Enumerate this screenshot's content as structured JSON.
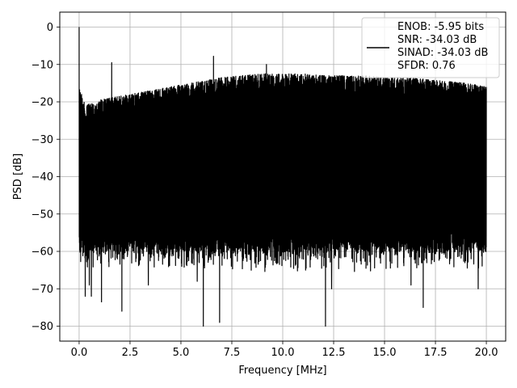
{
  "chart_data": {
    "type": "line",
    "title": "",
    "xlabel": "Frequency [MHz]",
    "ylabel": "PSD [dB]",
    "xlim": [
      -0.95,
      20.95
    ],
    "ylim": [
      -84.0,
      4.0
    ],
    "xticks": [
      0.0,
      2.5,
      5.0,
      7.5,
      10.0,
      12.5,
      15.0,
      17.5,
      20.0
    ],
    "xtick_labels": [
      "0.0",
      "2.5",
      "5.0",
      "7.5",
      "10.0",
      "12.5",
      "15.0",
      "17.5",
      "20.0"
    ],
    "yticks": [
      0,
      -10,
      -20,
      -30,
      -40,
      -50,
      -60,
      -70,
      -80
    ],
    "ytick_labels": [
      "0",
      "−10",
      "−20",
      "−30",
      "−40",
      "−50",
      "−60",
      "−70",
      "−80"
    ],
    "grid": true,
    "legend_position": "upper right",
    "series": [
      {
        "color": "#000000",
        "envelope": {
          "x": [
            0.0,
            0.3,
            1.0,
            2.0,
            3.0,
            4.0,
            5.0,
            6.0,
            7.0,
            8.0,
            9.0,
            10.0,
            11.0,
            12.0,
            13.0,
            14.0,
            15.0,
            16.0,
            17.0,
            18.0,
            19.0,
            20.0
          ],
          "top": [
            -16.0,
            -21.0,
            -19.5,
            -18.5,
            -17.5,
            -16.5,
            -15.5,
            -14.5,
            -13.5,
            -13.0,
            -12.5,
            -12.5,
            -12.5,
            -13.0,
            -13.0,
            -13.0,
            -13.5,
            -13.5,
            -14.0,
            -14.5,
            -15.0,
            -16.0
          ],
          "bottom": -58.0
        },
        "peaks": [
          {
            "x": 0.0,
            "y": 0.0
          },
          {
            "x": 0.12,
            "y": -18.0
          },
          {
            "x": 1.6,
            "y": -9.5
          },
          {
            "x": 6.6,
            "y": -7.8
          },
          {
            "x": 9.2,
            "y": -10.0
          }
        ],
        "dips": [
          {
            "x": 0.3,
            "y": -72.0
          },
          {
            "x": 0.5,
            "y": -69.0
          },
          {
            "x": 0.6,
            "y": -72.0
          },
          {
            "x": 1.1,
            "y": -73.5
          },
          {
            "x": 2.1,
            "y": -76.0
          },
          {
            "x": 3.4,
            "y": -69.0
          },
          {
            "x": 5.8,
            "y": -68.0
          },
          {
            "x": 6.1,
            "y": -80.0
          },
          {
            "x": 6.9,
            "y": -79.0
          },
          {
            "x": 12.1,
            "y": -80.0
          },
          {
            "x": 12.4,
            "y": -70.0
          },
          {
            "x": 16.3,
            "y": -69.0
          },
          {
            "x": 16.9,
            "y": -75.0
          },
          {
            "x": 19.6,
            "y": -70.0
          }
        ]
      }
    ],
    "legend": {
      "lines": [
        "ENOB: -5.95 bits",
        "SNR: -34.03 dB",
        "SINAD: -34.03 dB",
        "SFDR: 0.76"
      ]
    }
  }
}
